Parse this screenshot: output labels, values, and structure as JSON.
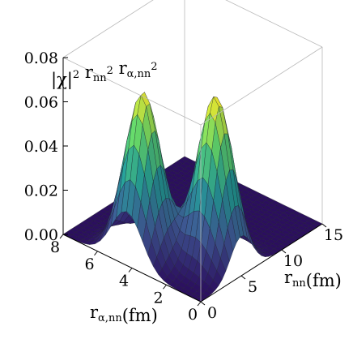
{
  "chart_data": {
    "type": "surface3d",
    "title": "",
    "zlabel": {
      "parts": [
        {
          "t": "|χ|"
        },
        {
          "t": "2",
          "sup": true
        },
        {
          "t": " r"
        },
        {
          "t": "nn",
          "sub": true
        },
        {
          "t": "2",
          "sup": true
        },
        {
          "t": " r"
        },
        {
          "t": "α,nn",
          "sub": true
        },
        {
          "t": "2",
          "sup": true
        }
      ]
    },
    "xlabel": {
      "parts": [
        {
          "t": "r"
        },
        {
          "t": "nn",
          "sub": true
        },
        {
          "t": "(fm)"
        }
      ]
    },
    "ylabel": {
      "parts": [
        {
          "t": "r"
        },
        {
          "t": "α,nn",
          "sub": true
        },
        {
          "t": "(fm)"
        }
      ]
    },
    "x_axis": {
      "name": "r_nn",
      "unit": "fm",
      "range": [
        0,
        15
      ],
      "ticks": [
        "0",
        "5",
        "10",
        "15"
      ],
      "tick_values": [
        0,
        5,
        10,
        15
      ]
    },
    "y_axis": {
      "name": "r_α,nn",
      "unit": "fm",
      "range": [
        0,
        8
      ],
      "ticks": [
        "0",
        "2",
        "4",
        "6",
        "8"
      ],
      "tick_values": [
        0,
        2,
        4,
        6,
        8
      ]
    },
    "z_axis": {
      "range": [
        0,
        0.08
      ],
      "ticks": [
        "0.00",
        "0.02",
        "0.04",
        "0.06",
        "0.08"
      ],
      "tick_values": [
        0,
        0.02,
        0.04,
        0.06,
        0.08
      ]
    },
    "peaks": [
      {
        "r_nn": 2.0,
        "r_alpha_nn": 4.3,
        "height": 0.074
      },
      {
        "r_nn": 5.0,
        "r_alpha_nn": 1.5,
        "height": 0.076
      }
    ],
    "colormap": [
      "#2b0f5e",
      "#3b528b",
      "#21908c",
      "#5ec962",
      "#fde725"
    ],
    "grid": false
  }
}
